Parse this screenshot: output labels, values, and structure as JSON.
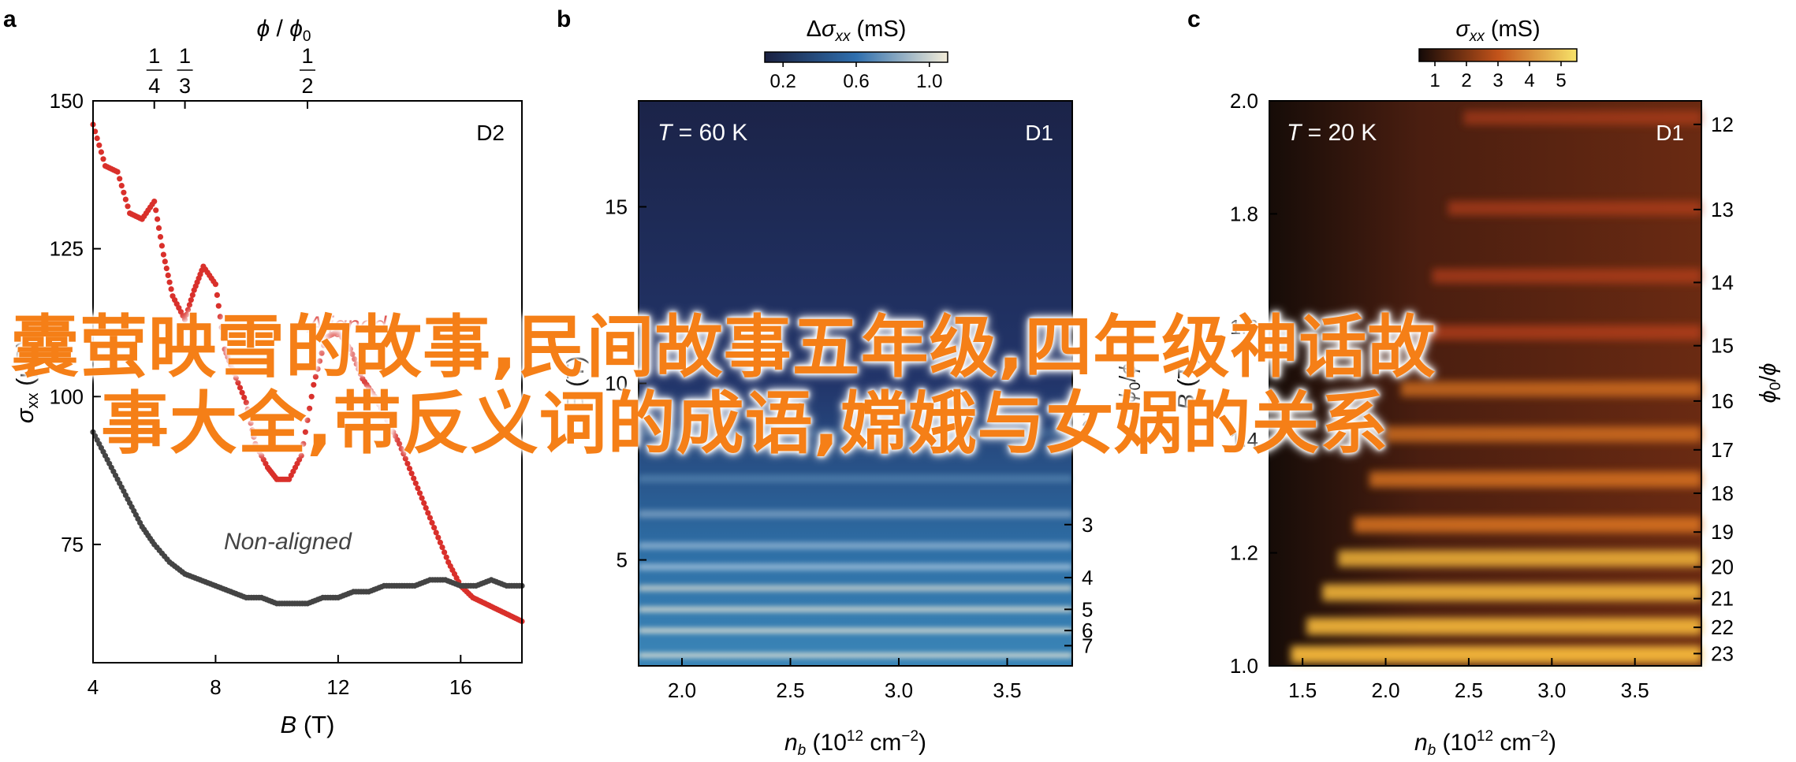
{
  "panels": {
    "a": {
      "letter": "a",
      "corner_tag": "D2",
      "xlabel": "B (T)",
      "ylabel": "σxx (μS)",
      "top_axis_label": "ϕ / ϕ0",
      "top_ticks": [
        {
          "num": "1",
          "den": "4",
          "b": 6.0
        },
        {
          "num": "1",
          "den": "3",
          "b": 7.0
        },
        {
          "num": "1",
          "den": "2",
          "b": 11.0
        }
      ],
      "xticks": [
        4,
        8,
        12,
        16
      ],
      "yticks": [
        75,
        100,
        125,
        150
      ],
      "annotations": {
        "aligned": "Aligned",
        "non_aligned": "Non-aligned"
      }
    },
    "b": {
      "letter": "b",
      "corner_tag": "D1",
      "temperature_label": "T = 60 K",
      "colorbar_label": "Δσxx (mS)",
      "colorbar_ticks": [
        "0.2",
        "0.6",
        "1.0"
      ],
      "xlabel": "nb (10¹² cm⁻²)",
      "ylabel": "B (T)",
      "xticks": [
        "2.0",
        "2.5",
        "3.0",
        "3.5"
      ],
      "yticks": [
        "5",
        "10",
        "15"
      ],
      "right_axis_label": "ϕ0/ϕ",
      "right_ticks": [
        "2",
        "3",
        "4",
        "5",
        "6",
        "7"
      ]
    },
    "c": {
      "letter": "c",
      "corner_tag": "D1",
      "temperature_label": "T = 20 K",
      "colorbar_label": "σxx (mS)",
      "colorbar_ticks": [
        "1",
        "2",
        "3",
        "4",
        "5"
      ],
      "xlabel": "nb (10¹² cm⁻²)",
      "ylabel": "B (T)",
      "xticks": [
        "1.5",
        "2.0",
        "2.5",
        "3.0",
        "3.5"
      ],
      "yticks": [
        "1.0",
        "1.2",
        "1.4",
        "1.6",
        "1.8",
        "2.0"
      ],
      "right_axis_label": "ϕ0/ϕ",
      "right_ticks": [
        "12",
        "13",
        "14",
        "15",
        "16",
        "17",
        "18",
        "19",
        "20",
        "21",
        "22",
        "23"
      ]
    }
  },
  "overlay_text": {
    "line1": "囊萤映雪的故事,民间故事五年级,四年级神话故",
    "line2": "事大全,带反义词的成语,嫦娥与女娲的关系"
  },
  "colors": {
    "aligned": "#d9302b",
    "non_aligned": "#444444",
    "overlay_text": "#f57f17",
    "map_b_low": "#1a2040",
    "map_b_mid": "#2f6fae",
    "map_b_high": "#f3ecd8",
    "map_c_low": "#140a08",
    "map_c_mid": "#c3531a",
    "map_c_high": "#f7c33c"
  },
  "chart_data": [
    {
      "type": "scatter",
      "panel": "a",
      "xlabel": "B (T)",
      "ylabel": "σxx (μS)",
      "xlim": [
        4,
        18
      ],
      "ylim": [
        55,
        150
      ],
      "series": [
        {
          "name": "Aligned",
          "x": [
            4.0,
            4.4,
            4.8,
            5.2,
            5.6,
            6.0,
            6.3,
            6.6,
            7.0,
            7.3,
            7.6,
            8.0,
            8.3,
            8.6,
            9.0,
            9.3,
            9.7,
            10.0,
            10.4,
            10.8,
            11.2,
            11.6,
            12.0,
            12.4,
            12.8,
            13.2,
            13.6,
            14.0,
            14.4,
            14.8,
            15.2,
            15.6,
            16.0,
            16.4,
            16.8,
            17.2,
            17.6,
            18.0
          ],
          "y": [
            146,
            139,
            138,
            131,
            130,
            133,
            124,
            117,
            113,
            118,
            122,
            119,
            108,
            104,
            99,
            92,
            88,
            86,
            86,
            90,
            102,
            110,
            111,
            108,
            103,
            100,
            96,
            92,
            87,
            82,
            77,
            72,
            68,
            66,
            65,
            64,
            63,
            62
          ]
        },
        {
          "name": "Non-aligned",
          "x": [
            4.0,
            4.4,
            4.8,
            5.2,
            5.6,
            6.0,
            6.5,
            7.0,
            7.5,
            8.0,
            8.5,
            9.0,
            9.5,
            10.0,
            10.5,
            11.0,
            11.5,
            12.0,
            12.5,
            13.0,
            13.5,
            14.0,
            14.5,
            15.0,
            15.5,
            16.0,
            16.5,
            17.0,
            17.5,
            18.0
          ],
          "y": [
            94,
            90,
            86,
            82,
            78,
            75,
            72,
            70,
            69,
            68,
            67,
            66,
            66,
            65,
            65,
            65,
            66,
            66,
            67,
            67,
            68,
            68,
            68,
            69,
            69,
            68,
            68,
            69,
            68,
            68
          ]
        }
      ]
    },
    {
      "type": "heatmap",
      "panel": "b",
      "title": "T = 60 K",
      "xlabel": "nb (10¹² cm⁻²)",
      "ylabel": "B (T)",
      "xlim": [
        1.8,
        3.8
      ],
      "ylim": [
        2,
        18
      ],
      "colorbar": {
        "label": "Δσxx (mS)",
        "range": [
          0.1,
          1.1
        ]
      },
      "bright_bands_B": [
        2.3,
        3.0,
        3.6,
        4.2,
        4.8,
        5.4,
        6.3,
        7.3,
        8.6
      ]
    },
    {
      "type": "heatmap",
      "panel": "c",
      "title": "T = 20 K",
      "xlabel": "nb (10¹² cm⁻²)",
      "ylabel": "B (T)",
      "xlim": [
        1.3,
        3.9
      ],
      "ylim": [
        1.0,
        2.0
      ],
      "colorbar": {
        "label": "σxx (mS)",
        "range": [
          0.5,
          5.5
        ]
      },
      "bright_bands_B": [
        1.97,
        1.81,
        1.69,
        1.59,
        1.49,
        1.41,
        1.33,
        1.25,
        1.19,
        1.13,
        1.07,
        1.02
      ]
    }
  ]
}
